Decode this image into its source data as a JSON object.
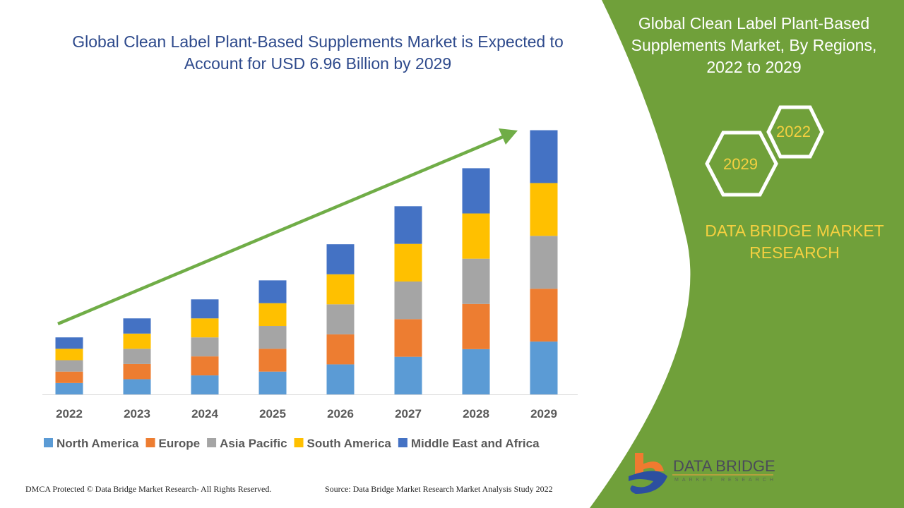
{
  "chart_data": {
    "type": "bar",
    "stacked": true,
    "title": "Global Clean Label Plant-Based Supplements Market is Expected to Account for USD 6.96 Billion by 2029",
    "categories": [
      "2022",
      "2023",
      "2024",
      "2025",
      "2026",
      "2027",
      "2028",
      "2029"
    ],
    "series": [
      {
        "name": "North America",
        "color": "#5b9bd5",
        "values": [
          0.3,
          0.4,
          0.5,
          0.6,
          0.79,
          0.99,
          1.19,
          1.39
        ]
      },
      {
        "name": "Europe",
        "color": "#ed7d31",
        "values": [
          0.3,
          0.4,
          0.5,
          0.6,
          0.79,
          0.99,
          1.19,
          1.39
        ]
      },
      {
        "name": "Asia Pacific",
        "color": "#a5a5a5",
        "values": [
          0.3,
          0.4,
          0.5,
          0.6,
          0.79,
          0.99,
          1.19,
          1.39
        ]
      },
      {
        "name": "South America",
        "color": "#ffc000",
        "values": [
          0.3,
          0.4,
          0.5,
          0.6,
          0.79,
          0.99,
          1.19,
          1.39
        ]
      },
      {
        "name": "Middle East and Africa",
        "color": "#4472c4",
        "values": [
          0.3,
          0.4,
          0.5,
          0.6,
          0.79,
          0.99,
          1.19,
          1.39
        ]
      }
    ],
    "ylim": [
      0,
      6.96
    ],
    "grid": false,
    "legend": "bottom",
    "trend_arrow_color": "#70ad47"
  },
  "footer": {
    "left": "DMCA Protected © Data Bridge Market Research- All Rights Reserved.",
    "right": "Source: Data Bridge Market Research Market Analysis Study 2022"
  },
  "panel": {
    "title": "Global Clean Label Plant-Based Supplements Market, By Regions, 2022 to 2029",
    "hex1": "2022",
    "hex2": "2029",
    "brand": "DATA BRIDGE MARKET RESEARCH",
    "color": "#70a03a"
  },
  "logo": {
    "name": "DATA BRIDGE",
    "sub": "MARKET RESEARCH"
  }
}
